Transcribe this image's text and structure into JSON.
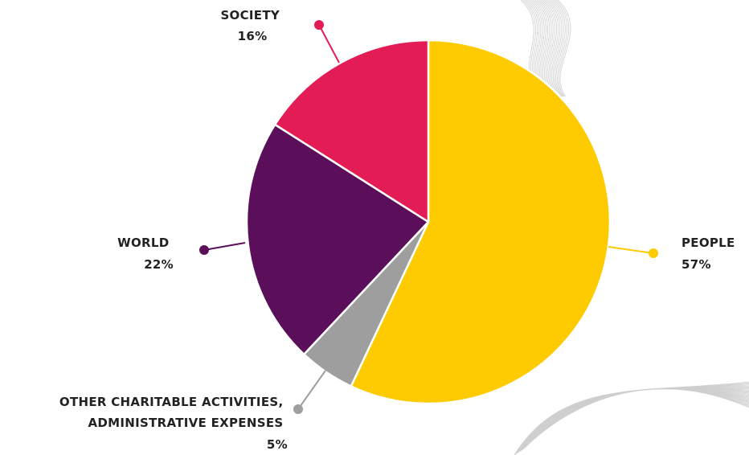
{
  "chart_data": {
    "type": "pie",
    "title": "",
    "slices": [
      {
        "label": "PEOPLE",
        "value": 57,
        "value_label": "57%",
        "color": "#FDCB00"
      },
      {
        "label": "OTHER CHARITABLE ACTIVITIES, ADMINISTRATIVE EXPENSES",
        "label_lines": [
          "OTHER CHARITABLE ACTIVITIES,",
          "ADMINISTRATIVE EXPENSES"
        ],
        "value": 5,
        "value_label": "5%",
        "color": "#9E9E9E"
      },
      {
        "label": "WORLD",
        "value": 22,
        "value_label": "22%",
        "color": "#5B0E5A"
      },
      {
        "label": "SOCIETY",
        "value": 16,
        "value_label": "16%",
        "color": "#E31C56"
      }
    ],
    "start_angle": "12 o'clock",
    "direction": "clockwise",
    "legend": "none"
  }
}
